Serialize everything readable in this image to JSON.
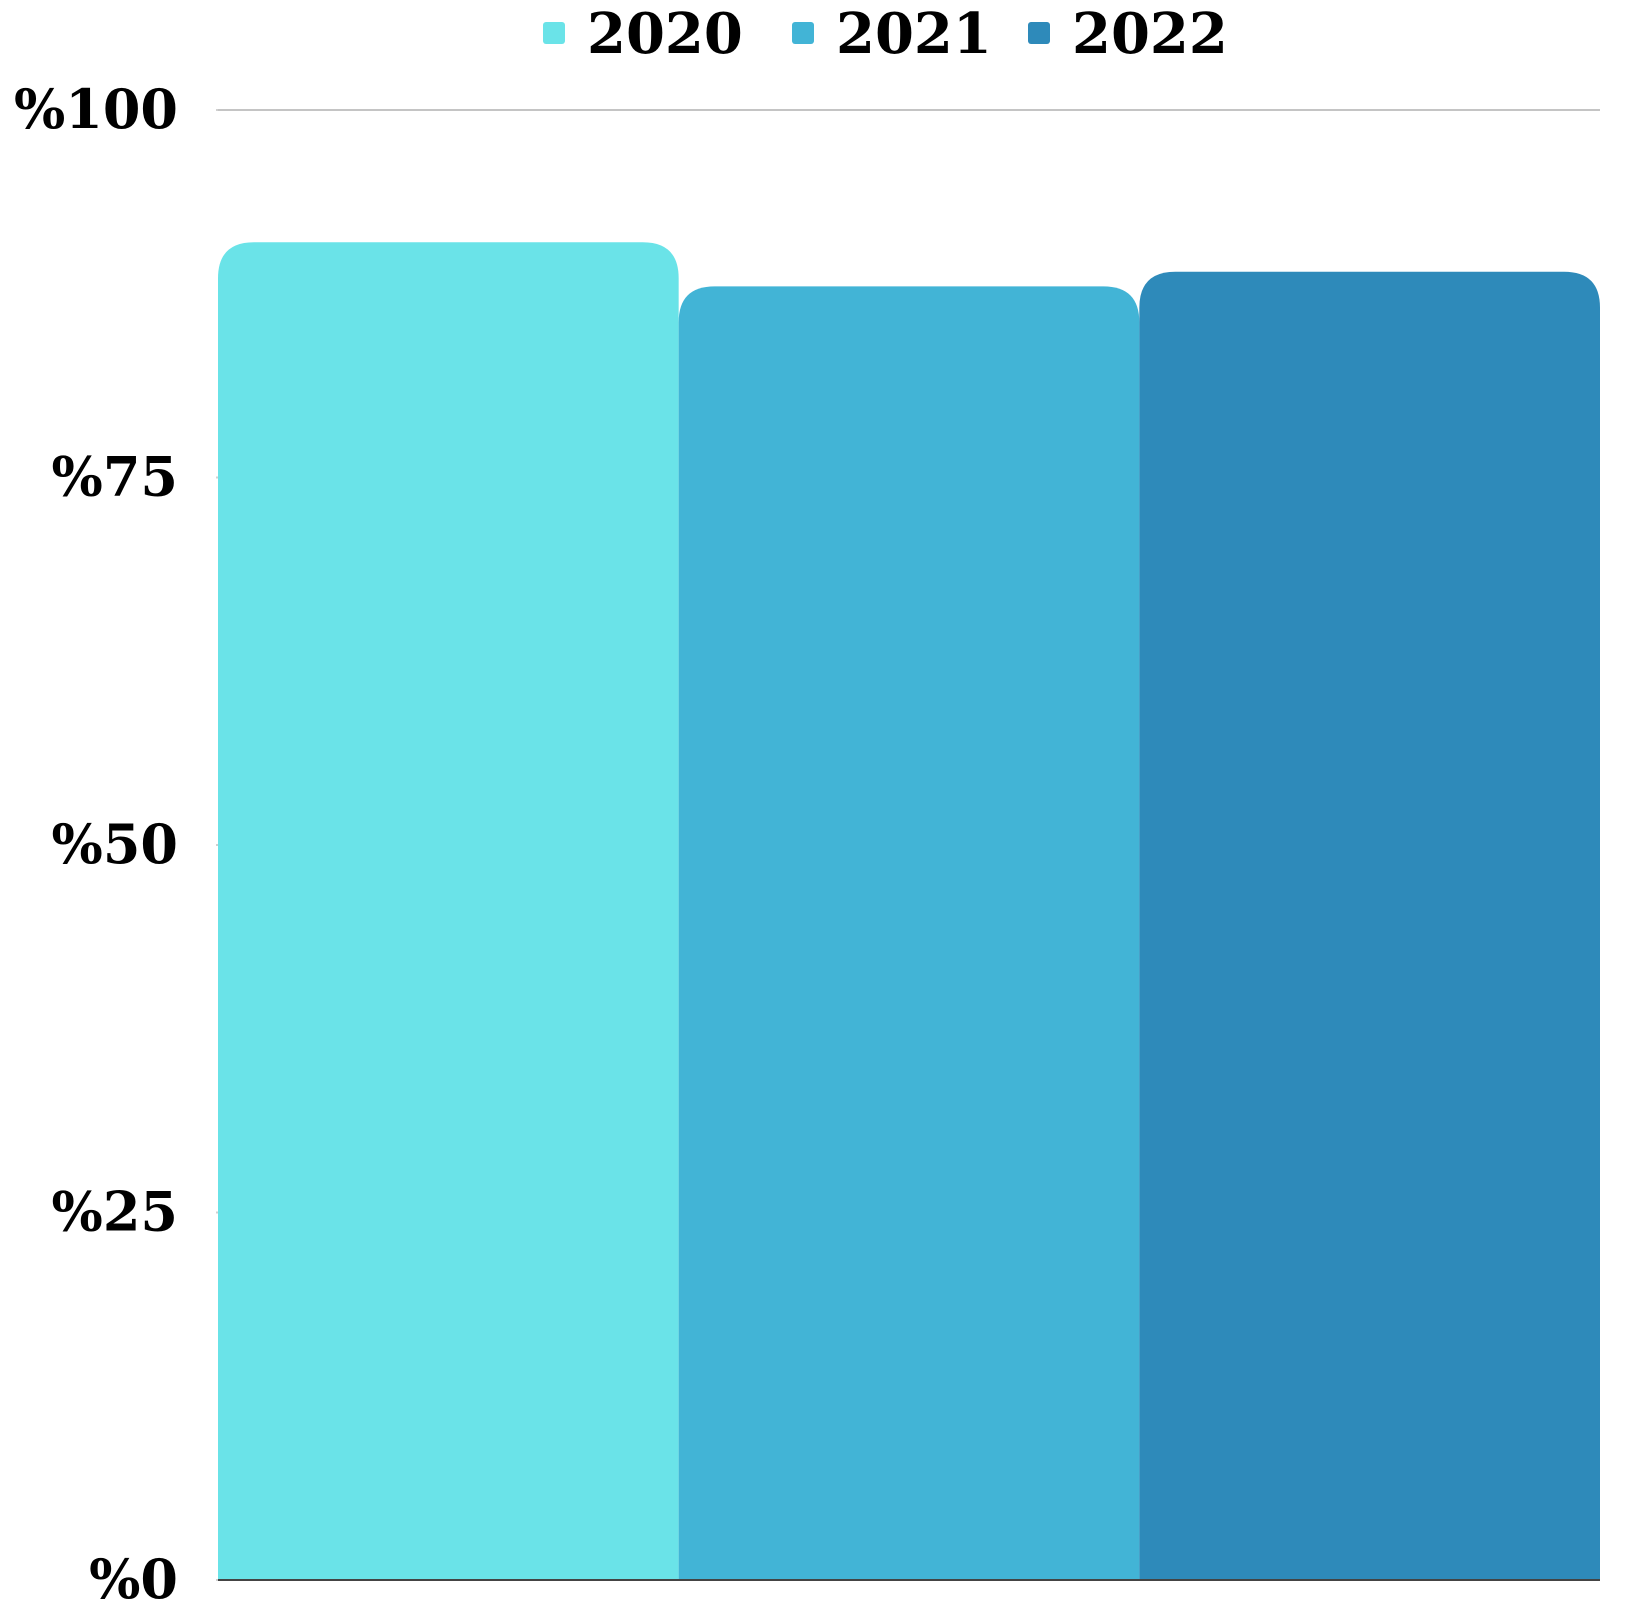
{
  "chart_data": {
    "type": "bar",
    "categories": [
      ""
    ],
    "series": [
      {
        "name": "2020",
        "values": [
          91
        ],
        "color": "#6ae3e8"
      },
      {
        "name": "2021",
        "values": [
          88
        ],
        "color": "#42b4d6"
      },
      {
        "name": "2022",
        "values": [
          89
        ],
        "color": "#2e8aba"
      }
    ],
    "y_ticks": [
      {
        "value": 0,
        "label": "%0"
      },
      {
        "value": 25,
        "label": "%25"
      },
      {
        "value": 50,
        "label": "%50"
      },
      {
        "value": 75,
        "label": "%75"
      },
      {
        "value": 100,
        "label": "%100"
      }
    ],
    "ylim": [
      0,
      100
    ],
    "grid": "top line only",
    "legend_position": "top",
    "xlabel": "",
    "ylabel": "",
    "title": ""
  }
}
